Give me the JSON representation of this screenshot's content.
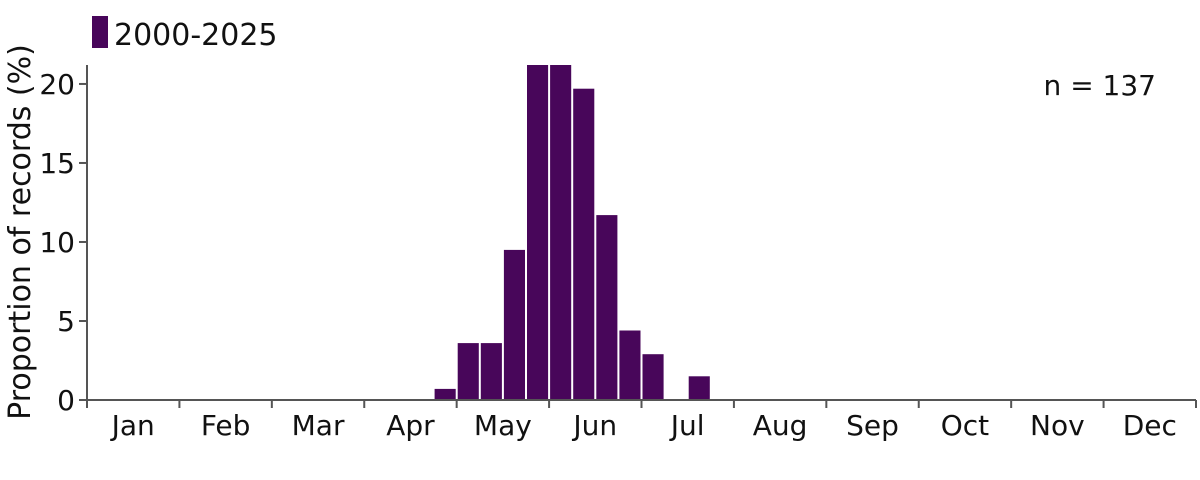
{
  "chart_data": {
    "type": "bar",
    "months": [
      "Jan",
      "Feb",
      "Mar",
      "Apr",
      "May",
      "Jun",
      "Jul",
      "Aug",
      "Sep",
      "Oct",
      "Nov",
      "Dec"
    ],
    "bins_per_month": 4,
    "values": [
      0,
      0,
      0,
      0,
      0,
      0,
      0,
      0,
      0,
      0,
      0,
      0,
      0,
      0,
      0,
      0.7,
      3.6,
      3.6,
      9.5,
      21.2,
      21.2,
      19.7,
      11.7,
      4.4,
      2.9,
      0,
      1.5,
      0,
      0,
      0,
      0,
      0,
      0,
      0,
      0,
      0,
      0,
      0,
      0,
      0,
      0,
      0,
      0,
      0,
      0,
      0,
      0,
      0
    ],
    "ylabel": "Proportion of records (%)",
    "xlabel": "",
    "ylim": [
      0,
      21.2
    ],
    "yticks": [
      0,
      5,
      10,
      15,
      20
    ],
    "legend": {
      "label": "2000-2025",
      "placement": "top-left"
    },
    "annotation": "n = 137",
    "bar_color": "#48065a",
    "grid": false
  }
}
